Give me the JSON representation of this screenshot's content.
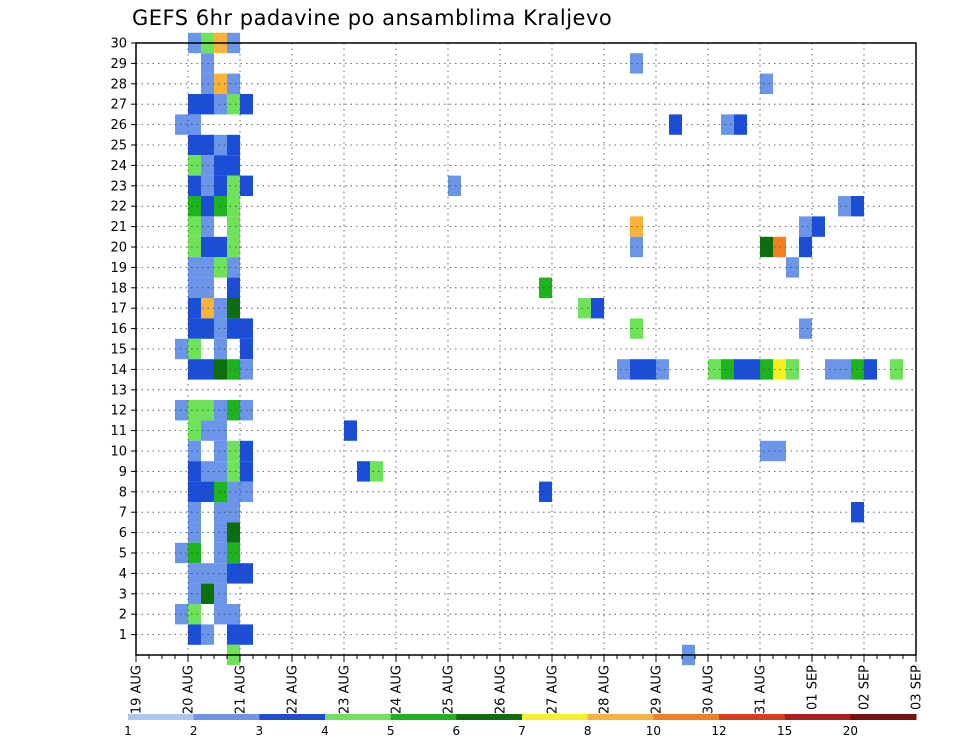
{
  "chart_data": {
    "type": "heatmap",
    "title": "GEFS 6hr padavine po ansamblima Kraljevo",
    "x_tick_labels": [
      "19 AUG",
      "20 AUG",
      "21 AUG",
      "22 AUG",
      "23 AUG",
      "24 AUG",
      "25 AUG",
      "26 AUG",
      "27 AUG",
      "28 AUG",
      "29 AUG",
      "30 AUG",
      "31 AUG",
      "01 SEP",
      "02 SEP",
      "03 SEP"
    ],
    "y_tick_labels": [
      "1",
      "2",
      "3",
      "4",
      "5",
      "6",
      "7",
      "8",
      "9",
      "10",
      "11",
      "12",
      "13",
      "14",
      "15",
      "16",
      "17",
      "18",
      "19",
      "20",
      "21",
      "22",
      "23",
      "24",
      "25",
      "26",
      "27",
      "28",
      "29",
      "30"
    ],
    "x_step": "6hr",
    "grid": true,
    "colorbar": {
      "labels": [
        "1",
        "2",
        "3",
        "4",
        "5",
        "6",
        "7",
        "8",
        "10",
        "12",
        "15",
        "20"
      ],
      "colors": [
        "#adc4f4",
        "#6b95e8",
        "#1a4ed8",
        "#6ee35a",
        "#1eb41e",
        "#0d6e0d",
        "#f7f21b",
        "#f9b23a",
        "#f47f1e",
        "#e0391c",
        "#b61a1a",
        "#7a0f0f"
      ]
    },
    "cells": [
      [
        4,
        30,
        1
      ],
      [
        5,
        30,
        3
      ],
      [
        6,
        30,
        7
      ],
      [
        7,
        30,
        1
      ],
      [
        5,
        29,
        1
      ],
      [
        38,
        29,
        1
      ],
      [
        5,
        28,
        1
      ],
      [
        6,
        28,
        7
      ],
      [
        7,
        28,
        1
      ],
      [
        48,
        28,
        1
      ],
      [
        4,
        27,
        2
      ],
      [
        5,
        27,
        2
      ],
      [
        6,
        27,
        1
      ],
      [
        7,
        27,
        3
      ],
      [
        8,
        27,
        2
      ],
      [
        3,
        26,
        1
      ],
      [
        4,
        26,
        1
      ],
      [
        41,
        26,
        2
      ],
      [
        45,
        26,
        1
      ],
      [
        46,
        26,
        2
      ],
      [
        4,
        25,
        2
      ],
      [
        5,
        25,
        2
      ],
      [
        6,
        25,
        1
      ],
      [
        7,
        25,
        2
      ],
      [
        4,
        24,
        3
      ],
      [
        5,
        24,
        1
      ],
      [
        6,
        24,
        2
      ],
      [
        7,
        24,
        2
      ],
      [
        4,
        23,
        2
      ],
      [
        5,
        23,
        1
      ],
      [
        6,
        23,
        2
      ],
      [
        7,
        23,
        3
      ],
      [
        8,
        23,
        2
      ],
      [
        24,
        23,
        1
      ],
      [
        4,
        22,
        4
      ],
      [
        5,
        22,
        2
      ],
      [
        6,
        22,
        4
      ],
      [
        7,
        22,
        3
      ],
      [
        54,
        22,
        1
      ],
      [
        55,
        22,
        2
      ],
      [
        4,
        21,
        3
      ],
      [
        5,
        21,
        1
      ],
      [
        7,
        21,
        3
      ],
      [
        38,
        21,
        7
      ],
      [
        51,
        21,
        1
      ],
      [
        52,
        21,
        2
      ],
      [
        4,
        20,
        3
      ],
      [
        5,
        20,
        2
      ],
      [
        6,
        20,
        2
      ],
      [
        7,
        20,
        3
      ],
      [
        38,
        20,
        1
      ],
      [
        48,
        20,
        5
      ],
      [
        49,
        20,
        8
      ],
      [
        51,
        20,
        2
      ],
      [
        4,
        19,
        1
      ],
      [
        5,
        19,
        1
      ],
      [
        6,
        19,
        3
      ],
      [
        7,
        19,
        1
      ],
      [
        50,
        19,
        1
      ],
      [
        4,
        18,
        1
      ],
      [
        5,
        18,
        1
      ],
      [
        7,
        18,
        2
      ],
      [
        31,
        18,
        4
      ],
      [
        4,
        17,
        2
      ],
      [
        5,
        17,
        7
      ],
      [
        6,
        17,
        1
      ],
      [
        7,
        17,
        5
      ],
      [
        34,
        17,
        3
      ],
      [
        35,
        17,
        2
      ],
      [
        4,
        16,
        2
      ],
      [
        5,
        16,
        2
      ],
      [
        6,
        16,
        1
      ],
      [
        7,
        16,
        2
      ],
      [
        8,
        16,
        2
      ],
      [
        38,
        16,
        3
      ],
      [
        51,
        16,
        1
      ],
      [
        3,
        15,
        1
      ],
      [
        4,
        15,
        3
      ],
      [
        6,
        15,
        1
      ],
      [
        8,
        15,
        2
      ],
      [
        4,
        14,
        2
      ],
      [
        5,
        14,
        2
      ],
      [
        6,
        14,
        5
      ],
      [
        7,
        14,
        4
      ],
      [
        8,
        14,
        1
      ],
      [
        37,
        14,
        1
      ],
      [
        38,
        14,
        2
      ],
      [
        39,
        14,
        2
      ],
      [
        40,
        14,
        1
      ],
      [
        44,
        14,
        3
      ],
      [
        45,
        14,
        4
      ],
      [
        46,
        14,
        2
      ],
      [
        47,
        14,
        2
      ],
      [
        48,
        14,
        4
      ],
      [
        49,
        14,
        6
      ],
      [
        50,
        14,
        3
      ],
      [
        53,
        14,
        1
      ],
      [
        54,
        14,
        1
      ],
      [
        55,
        14,
        4
      ],
      [
        56,
        14,
        2
      ],
      [
        58,
        14,
        3
      ],
      [
        3,
        12,
        1
      ],
      [
        4,
        12,
        3
      ],
      [
        5,
        12,
        3
      ],
      [
        6,
        12,
        1
      ],
      [
        7,
        12,
        4
      ],
      [
        8,
        12,
        1
      ],
      [
        4,
        11,
        3
      ],
      [
        5,
        11,
        1
      ],
      [
        6,
        11,
        1
      ],
      [
        16,
        11,
        2
      ],
      [
        4,
        10,
        1
      ],
      [
        6,
        10,
        1
      ],
      [
        7,
        10,
        3
      ],
      [
        8,
        10,
        2
      ],
      [
        48,
        10,
        1
      ],
      [
        49,
        10,
        1
      ],
      [
        4,
        9,
        2
      ],
      [
        5,
        9,
        1
      ],
      [
        6,
        9,
        1
      ],
      [
        7,
        9,
        3
      ],
      [
        8,
        9,
        2
      ],
      [
        17,
        9,
        2
      ],
      [
        18,
        9,
        3
      ],
      [
        4,
        8,
        2
      ],
      [
        5,
        8,
        2
      ],
      [
        6,
        8,
        4
      ],
      [
        7,
        8,
        1
      ],
      [
        8,
        8,
        1
      ],
      [
        31,
        8,
        2
      ],
      [
        4,
        7,
        1
      ],
      [
        6,
        7,
        1
      ],
      [
        7,
        7,
        1
      ],
      [
        55,
        7,
        2
      ],
      [
        4,
        6,
        1
      ],
      [
        6,
        6,
        1
      ],
      [
        7,
        6,
        5
      ],
      [
        3,
        5,
        1
      ],
      [
        4,
        5,
        4
      ],
      [
        6,
        5,
        1
      ],
      [
        7,
        5,
        4
      ],
      [
        4,
        4,
        1
      ],
      [
        5,
        4,
        1
      ],
      [
        6,
        4,
        1
      ],
      [
        7,
        4,
        2
      ],
      [
        8,
        4,
        2
      ],
      [
        4,
        3,
        1
      ],
      [
        5,
        3,
        5
      ],
      [
        6,
        3,
        1
      ],
      [
        3,
        2,
        1
      ],
      [
        4,
        2,
        3
      ],
      [
        6,
        2,
        1
      ],
      [
        7,
        2,
        1
      ],
      [
        4,
        1,
        2
      ],
      [
        5,
        1,
        1
      ],
      [
        7,
        1,
        2
      ],
      [
        8,
        1,
        2
      ],
      [
        42,
        0,
        1
      ],
      [
        7,
        0,
        3
      ]
    ]
  }
}
